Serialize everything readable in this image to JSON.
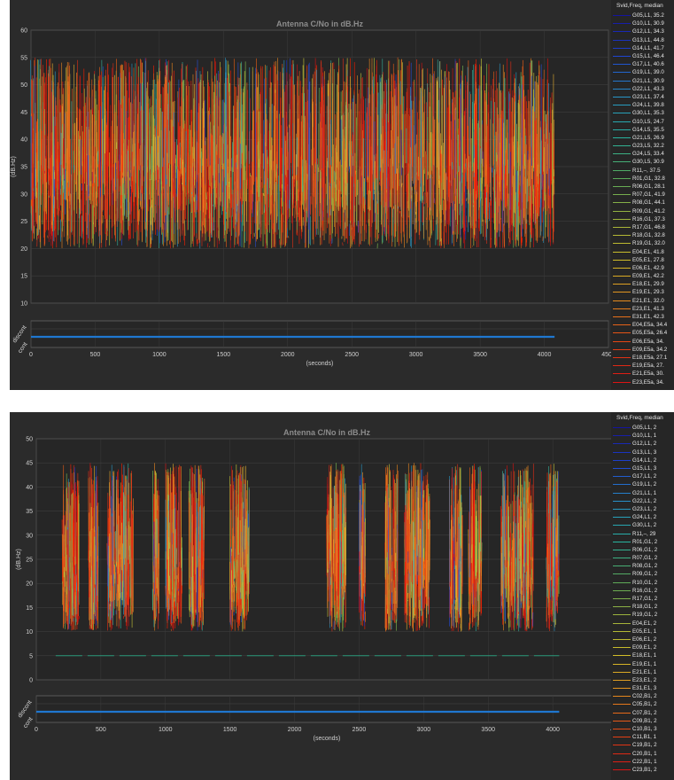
{
  "chart_data": [
    {
      "type": "line",
      "title": "Antenna C/No in dB.Hz",
      "ylabel": "(dB.Hz)",
      "xlabel": "(seconds)",
      "xlim": [
        0,
        4500
      ],
      "ylim": [
        10,
        60
      ],
      "x_ticks": [
        "0",
        "500",
        "1000",
        "1500",
        "2000",
        "2500",
        "3000",
        "3500",
        "4000",
        "4500"
      ],
      "y_ticks": [
        "10",
        "15",
        "20",
        "25",
        "30",
        "35",
        "40",
        "45",
        "50",
        "55",
        "60"
      ],
      "grid": true,
      "legend_title": "Svid,Freq, median",
      "legend_placement": "right",
      "legend": [
        "G05,L1, 35.2",
        "G10,L1, 30.9",
        "G12,L1, 34.3",
        "G13,L1, 44.8",
        "G14,L1, 41.7",
        "G15,L1, 46.4",
        "G17,L1, 40.6",
        "G19,L1, 39.0",
        "G21,L1, 30.9",
        "G22,L1, 43.3",
        "G23,L1, 37.4",
        "G24,L1, 39.8",
        "G30,L1, 35.3",
        "G10,L5, 24.7",
        "G14,L5, 35.5",
        "G21,L5, 26.9",
        "G23,L5, 32.2",
        "G24,L5, 33.4",
        "G30,L5, 30.9",
        "R11,–, 37.5",
        "R01,G1, 32.8",
        "R06,G1, 28.1",
        "R07,G1, 41.9",
        "R08,G1, 44.1",
        "R09,G1, 41.2",
        "R16,G1, 37.3",
        "R17,G1, 46.8",
        "R18,G1, 32.8",
        "R19,G1, 32.0",
        "E04,E1, 41.8",
        "E05,E1, 27.8",
        "E06,E1, 42.9",
        "E09,E1, 42.2",
        "E18,E1, 29.9",
        "E19,E1, 29.3",
        "E21,E1, 32.0",
        "E23,E1, 41.3",
        "E31,E1, 42.3",
        "E04,E5a, 34.4",
        "E05,E5a, 26.4",
        "E06,E5a, 34.",
        "E09,E5a, 34.2",
        "E18,E5a, 27.1",
        "E19,E5a, 27.",
        "E21,E5a, 30.",
        "E23,E5a, 34."
      ],
      "data_extent_x": [
        0,
        4080
      ],
      "data_band_db_hz": [
        20,
        55
      ],
      "sub_plot": {
        "y_labels": [
          "discont",
          "cont"
        ],
        "line_color": "#1f77d0",
        "xlim": [
          0,
          4500
        ],
        "x_end": 4080
      }
    },
    {
      "type": "line",
      "title": "Antenna C/No in dB.Hz",
      "ylabel": "(dB.Hz)",
      "xlabel": "(seconds)",
      "xlim": [
        0,
        4500
      ],
      "ylim": [
        0,
        50
      ],
      "x_ticks": [
        "0",
        "500",
        "1000",
        "1500",
        "2000",
        "2500",
        "3000",
        "3500",
        "4000",
        "4500"
      ],
      "y_ticks": [
        "0",
        "5",
        "10",
        "15",
        "20",
        "25",
        "30",
        "35",
        "40",
        "45",
        "50"
      ],
      "grid": true,
      "legend_title": "Svid,Freq, median",
      "legend_placement": "right",
      "legend": [
        "G05,L1, 2",
        "G10,L1, 1",
        "G12,L1, 2",
        "G13,L1, 3",
        "G14,L1, 2",
        "G15,L1, 3",
        "G17,L1, 2",
        "G19,L1, 2",
        "G21,L1, 1",
        "G22,L1, 2",
        "G23,L1, 2",
        "G24,L1, 2",
        "G30,L1, 2",
        "R11,–, 29",
        "R01,G1, 2",
        "R06,G1, 2",
        "R07,G1, 2",
        "R08,G1, 2",
        "R09,G1, 2",
        "R10,G1, 2",
        "R16,G1, 2",
        "R17,G1, 2",
        "R18,G1, 2",
        "R19,G1, 2",
        "E04,E1, 2",
        "E05,E1, 1",
        "E06,E1, 2",
        "E09,E1, 2",
        "E18,E1, 1",
        "E19,E1, 1",
        "E21,E1, 1",
        "E23,E1, 2",
        "E31,E1, 3",
        "C02,B1, 2",
        "C05,B1, 2",
        "C07,B1, 2",
        "C09,B1, 2",
        "C10,B1, 3",
        "C11,B1, 1",
        "C19,B1, 2",
        "C20,B1, 1",
        "C22,B1, 1",
        "C23,B1, 2"
      ],
      "signal_segments_x": [
        [
          200,
          330
        ],
        [
          400,
          480
        ],
        [
          550,
          750
        ],
        [
          900,
          950
        ],
        [
          1000,
          1130
        ],
        [
          1180,
          1300
        ],
        [
          1500,
          1650
        ],
        [
          2250,
          2400
        ],
        [
          2500,
          2550
        ],
        [
          2700,
          2800
        ],
        [
          2850,
          3050
        ],
        [
          3200,
          3300
        ],
        [
          3350,
          3450
        ],
        [
          3600,
          3850
        ],
        [
          3950,
          4050
        ]
      ],
      "data_band_db_hz": [
        10,
        45
      ],
      "floor_line_db_hz": 5,
      "sub_plot": {
        "y_labels": [
          "discont",
          "cont"
        ],
        "line_color": "#1f77d0",
        "xlim": [
          0,
          4500
        ],
        "x_end": 4050
      }
    }
  ],
  "colors": {
    "panel_bg": "#2b2b2b",
    "plot_bg": "#262626",
    "grid": "#444444",
    "accent_line": "#1f77d0"
  }
}
